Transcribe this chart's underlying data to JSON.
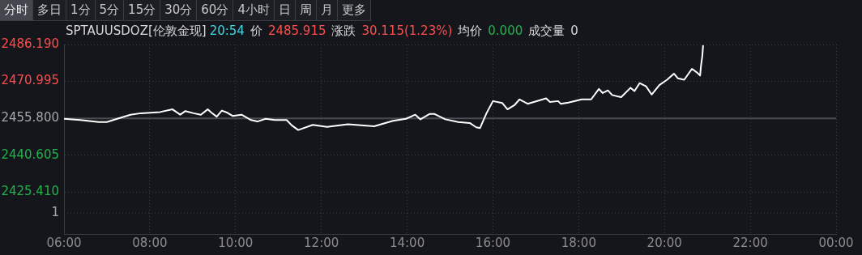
{
  "chart_data": {
    "type": "line",
    "title": "SPTAUUSDOZ[伦敦金现]",
    "subtitle": "20:54 价 2485.915 涨跌 30.115(1.23%) 均价 0.000 成交量 0",
    "annotations": [
      "分时",
      "多日",
      "1分",
      "5分",
      "15分",
      "30分",
      "60分",
      "4小时",
      "日",
      "周",
      "月",
      "更多",
      "1"
    ],
    "x": [
      6.0,
      6.38,
      6.81,
      7.0,
      7.24,
      7.55,
      7.79,
      8.24,
      8.53,
      8.71,
      8.83,
      9.02,
      9.19,
      9.35,
      9.44,
      9.56,
      9.68,
      9.81,
      9.93,
      10.14,
      10.36,
      10.51,
      10.7,
      10.92,
      11.19,
      11.31,
      11.46,
      11.8,
      12.13,
      12.62,
      13.23,
      13.67,
      13.97,
      14.19,
      14.31,
      14.52,
      14.64,
      14.89,
      15.19,
      15.46,
      15.61,
      15.7,
      15.85,
      16.0,
      16.22,
      16.34,
      16.5,
      16.62,
      16.81,
      17.24,
      17.33,
      17.52,
      17.58,
      17.76,
      18.07,
      18.29,
      18.47,
      18.56,
      18.68,
      18.78,
      18.99,
      19.21,
      19.3,
      19.42,
      19.57,
      19.7,
      19.88,
      20.06,
      20.22,
      20.31,
      20.46,
      20.64,
      20.77,
      20.83,
      20.85,
      20.88,
      20.9
    ],
    "values": [
      2455.6,
      2455.1,
      2454.3,
      2454.3,
      2455.6,
      2457.3,
      2457.9,
      2458.4,
      2459.5,
      2457.3,
      2458.8,
      2457.9,
      2457.3,
      2459.5,
      2458.1,
      2456.5,
      2459.0,
      2458.1,
      2456.8,
      2457.3,
      2455.1,
      2454.5,
      2455.6,
      2455.1,
      2455.1,
      2452.9,
      2451.0,
      2453.1,
      2452.3,
      2453.4,
      2452.5,
      2454.8,
      2455.6,
      2457.3,
      2455.4,
      2457.6,
      2457.6,
      2455.4,
      2454.3,
      2453.9,
      2452.1,
      2451.8,
      2457.9,
      2462.9,
      2462.1,
      2459.5,
      2461.2,
      2463.6,
      2461.8,
      2464.0,
      2462.5,
      2462.9,
      2461.8,
      2462.3,
      2463.6,
      2463.6,
      2467.9,
      2466.2,
      2467.3,
      2465.4,
      2464.5,
      2468.4,
      2467.0,
      2470.3,
      2469.0,
      2465.6,
      2469.5,
      2471.7,
      2474.2,
      2472.3,
      2471.7,
      2476.2,
      2474.5,
      2473.4,
      2477.3,
      2481.2,
      2485.9
    ],
    "color": "#ffffff",
    "xlim": [
      6,
      24
    ],
    "xticks": [
      {
        "value": 6,
        "label": "06:00"
      },
      {
        "value": 8,
        "label": "08:00"
      },
      {
        "value": 10,
        "label": "10:00"
      },
      {
        "value": 12,
        "label": "12:00"
      },
      {
        "value": 14,
        "label": "14:00"
      },
      {
        "value": 16,
        "label": "16:00"
      },
      {
        "value": 18,
        "label": "18:00"
      },
      {
        "value": 20,
        "label": "20:00"
      },
      {
        "value": 22,
        "label": "22:00"
      },
      {
        "value": 24,
        "label": "00:00"
      }
    ],
    "ylim": [
      2408.2,
      2486.19
    ],
    "yticks": [
      {
        "value": 2425.41,
        "label": "2425.410"
      },
      {
        "value": 2440.605,
        "label": "2440.605"
      },
      {
        "value": 2455.8,
        "label": "2455.800"
      },
      {
        "value": 2470.995,
        "label": "2470.995"
      },
      {
        "value": 2486.19,
        "label": "2486.190"
      }
    ],
    "ref_lines": [
      {
        "axis": "y",
        "value": 2455.8,
        "color": "#4a4c52"
      }
    ],
    "grid": true,
    "legend": false,
    "marker": "none",
    "line_style": "solid"
  }
}
